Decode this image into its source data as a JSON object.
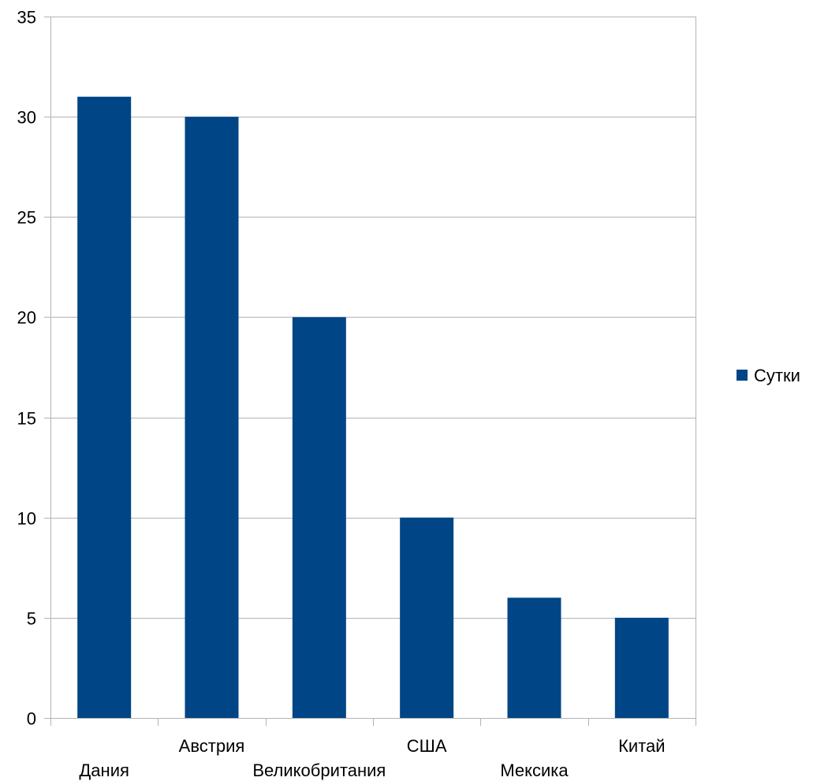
{
  "chart_data": {
    "type": "bar",
    "categories": [
      "Дания",
      "Австрия",
      "Великобритания",
      "США",
      "Мексика",
      "Китай"
    ],
    "series": [
      {
        "name": "Сутки",
        "values": [
          31,
          30,
          20,
          10,
          6,
          5
        ],
        "color": "#004586"
      }
    ],
    "ylim": [
      0,
      35
    ],
    "yticks": [
      0,
      5,
      10,
      15,
      20,
      25,
      30,
      35
    ],
    "grid": true,
    "legend_position": "right",
    "title": "",
    "xlabel": "",
    "ylabel": ""
  }
}
